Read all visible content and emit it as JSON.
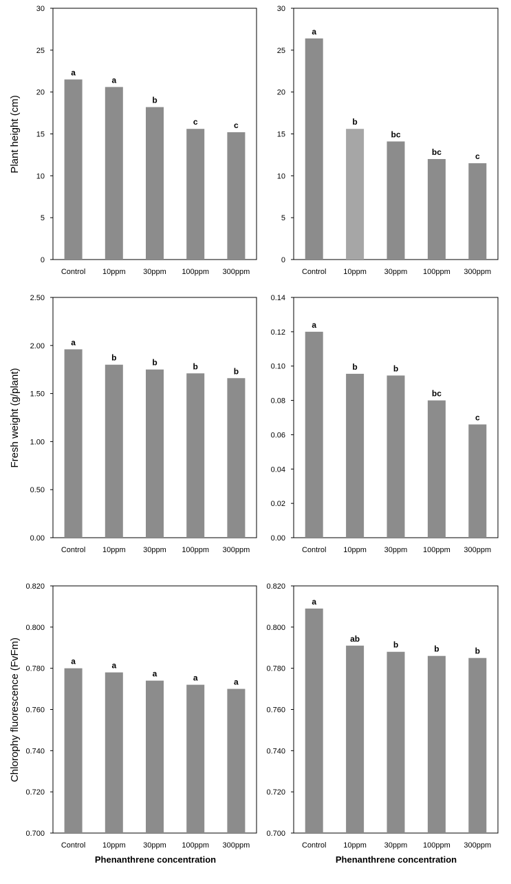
{
  "figure": {
    "row_ylabels": [
      "Plant height (cm)",
      "Fresh weight (g/plant)",
      "Chlorophy fluorescence (FvFm)"
    ],
    "col_xlabels": [
      "Phenanthrene concentration",
      "Phenanthrene concentration"
    ]
  },
  "colors": {
    "bar": "#8c8c8c",
    "bar_light": "#a6a6a6",
    "axis": "#000000"
  },
  "chart_data": [
    {
      "type": "bar",
      "categories": [
        "Control",
        "10ppm",
        "30ppm",
        "100ppm",
        "300ppm"
      ],
      "values": [
        21.5,
        20.6,
        18.2,
        15.6,
        15.2
      ],
      "letters": [
        "a",
        "a",
        "b",
        "c",
        "c"
      ],
      "bar_colors": [
        "#8c8c8c",
        "#8c8c8c",
        "#8c8c8c",
        "#8c8c8c",
        "#8c8c8c"
      ],
      "ylim": [
        0,
        30
      ],
      "yticks": [
        "0",
        "5",
        "10",
        "15",
        "20",
        "25",
        "30"
      ],
      "ylabel": "Plant height (cm)",
      "xlabel": ""
    },
    {
      "type": "bar",
      "categories": [
        "Control",
        "10ppm",
        "30ppm",
        "100ppm",
        "300ppm"
      ],
      "values": [
        26.4,
        15.6,
        14.1,
        12.0,
        11.5
      ],
      "letters": [
        "a",
        "b",
        "bc",
        "bc",
        "c"
      ],
      "bar_colors": [
        "#8c8c8c",
        "#a6a6a6",
        "#8c8c8c",
        "#8c8c8c",
        "#8c8c8c"
      ],
      "ylim": [
        0,
        30
      ],
      "yticks": [
        "0",
        "5",
        "10",
        "15",
        "20",
        "25",
        "30"
      ],
      "ylabel": "",
      "xlabel": ""
    },
    {
      "type": "bar",
      "categories": [
        "Control",
        "10ppm",
        "30ppm",
        "100ppm",
        "300ppm"
      ],
      "values": [
        1.96,
        1.8,
        1.75,
        1.71,
        1.66
      ],
      "letters": [
        "a",
        "b",
        "b",
        "b",
        "b"
      ],
      "bar_colors": [
        "#8c8c8c",
        "#8c8c8c",
        "#8c8c8c",
        "#8c8c8c",
        "#8c8c8c"
      ],
      "ylim": [
        0,
        2.5
      ],
      "yticks": [
        "0.00",
        "0.50",
        "1.00",
        "1.50",
        "2.00",
        "2.50"
      ],
      "ylabel": "Fresh weight (g/plant)",
      "xlabel": ""
    },
    {
      "type": "bar",
      "categories": [
        "Control",
        "10ppm",
        "30ppm",
        "100ppm",
        "300ppm"
      ],
      "values": [
        0.12,
        0.0955,
        0.0945,
        0.08,
        0.066
      ],
      "letters": [
        "a",
        "b",
        "b",
        "bc",
        "c"
      ],
      "bar_colors": [
        "#8c8c8c",
        "#8c8c8c",
        "#8c8c8c",
        "#8c8c8c",
        "#8c8c8c"
      ],
      "ylim": [
        0,
        0.14
      ],
      "yticks": [
        "0.00",
        "0.02",
        "0.04",
        "0.06",
        "0.08",
        "0.10",
        "0.12",
        "0.14"
      ],
      "ylabel": "",
      "xlabel": ""
    },
    {
      "type": "bar",
      "categories": [
        "Control",
        "10ppm",
        "30ppm",
        "100ppm",
        "300ppm"
      ],
      "values": [
        0.78,
        0.778,
        0.774,
        0.772,
        0.77
      ],
      "letters": [
        "a",
        "a",
        "a",
        "a",
        "a"
      ],
      "bar_colors": [
        "#8c8c8c",
        "#8c8c8c",
        "#8c8c8c",
        "#8c8c8c",
        "#8c8c8c"
      ],
      "ylim": [
        0.7,
        0.82
      ],
      "yticks": [
        "0.700",
        "0.720",
        "0.740",
        "0.760",
        "0.780",
        "0.800",
        "0.820"
      ],
      "ylabel": "Chlorophy fluorescence (FvFm)",
      "xlabel": "Phenanthrene concentration"
    },
    {
      "type": "bar",
      "categories": [
        "Control",
        "10ppm",
        "30ppm",
        "100ppm",
        "300ppm"
      ],
      "values": [
        0.809,
        0.791,
        0.788,
        0.786,
        0.785
      ],
      "letters": [
        "a",
        "ab",
        "b",
        "b",
        "b"
      ],
      "bar_colors": [
        "#8c8c8c",
        "#8c8c8c",
        "#8c8c8c",
        "#8c8c8c",
        "#8c8c8c"
      ],
      "ylim": [
        0.7,
        0.82
      ],
      "yticks": [
        "0.700",
        "0.720",
        "0.740",
        "0.760",
        "0.780",
        "0.800",
        "0.820"
      ],
      "ylabel": "",
      "xlabel": "Phenanthrene concentration"
    }
  ]
}
